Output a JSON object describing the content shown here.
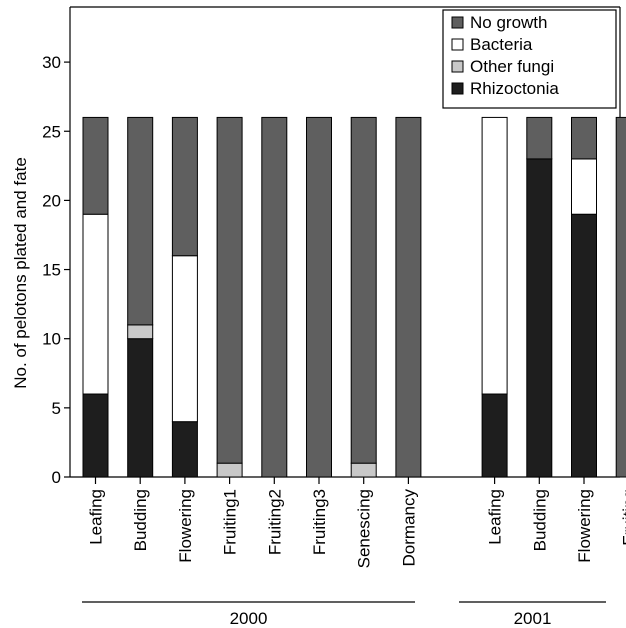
{
  "chart_data": {
    "type": "bar",
    "stacked": true,
    "ylabel": "No. of pelotons plated and fate",
    "ylim": [
      0,
      35
    ],
    "yticks": [
      0,
      5,
      10,
      15,
      20,
      25,
      30
    ],
    "categories": [
      "Leafing",
      "Budding",
      "Flowering",
      "Fruiting1",
      "Fruiting2",
      "Fruiting3",
      "Senescing",
      "Dormancy",
      "Leafing",
      "Budding",
      "Flowering",
      "Fruiting"
    ],
    "groups": [
      {
        "label": "2000",
        "start": 0,
        "end": 7
      },
      {
        "label": "2001",
        "start": 8,
        "end": 11
      }
    ],
    "series": [
      {
        "name": "Rhizoctonia",
        "color": "#1e1e1e",
        "values": [
          6,
          10,
          4,
          0,
          0,
          0,
          0,
          0,
          6,
          23,
          19,
          0
        ]
      },
      {
        "name": "Other fungi",
        "color": "#c8c8c8",
        "values": [
          0,
          1,
          0,
          1,
          0,
          0,
          1,
          0,
          0,
          0,
          0,
          0
        ]
      },
      {
        "name": "Bacteria",
        "color": "#ffffff",
        "values": [
          13,
          0,
          12,
          0,
          0,
          0,
          0,
          0,
          20,
          0,
          4,
          0
        ]
      },
      {
        "name": "No growth",
        "color": "#5f5f5f",
        "values": [
          7,
          15,
          10,
          25,
          26,
          26,
          25,
          26,
          0,
          3,
          3,
          26
        ]
      }
    ],
    "legend": {
      "placement": "top-right",
      "order": [
        "No growth",
        "Bacteria",
        "Other fungi",
        "Rhizoctonia"
      ]
    },
    "grid": false
  }
}
